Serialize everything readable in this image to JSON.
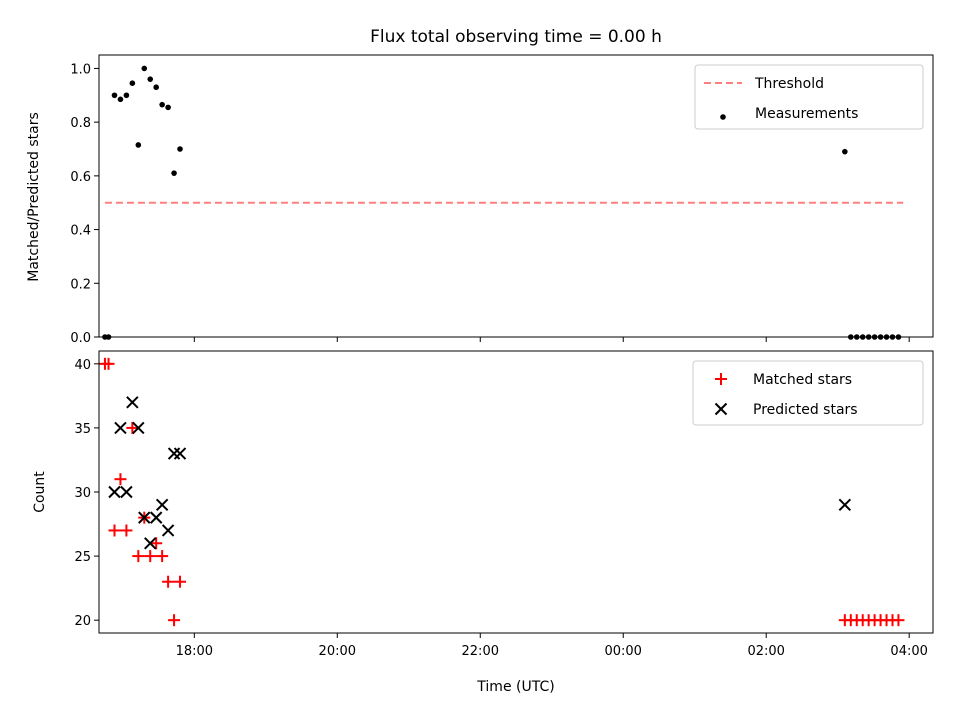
{
  "chart_data": [
    {
      "type": "scatter",
      "title": "Flux total observing time = 0.00 h",
      "xlabel": "",
      "ylabel": "Matched/Predicted stars",
      "xlim": [
        "16:40",
        "04:20"
      ],
      "ylim": [
        0,
        1.05
      ],
      "yticks": [
        "0.0",
        "0.2",
        "0.4",
        "0.6",
        "0.8",
        "1.0"
      ],
      "legend": {
        "placement": "top-right",
        "entries": [
          "Threshold",
          "Measurements"
        ]
      },
      "series": [
        {
          "name": "Threshold",
          "style": "dashed-line",
          "color": "#ff7f7f",
          "points": [
            [
              "16:45",
              0.5
            ],
            [
              "03:55",
              0.5
            ]
          ]
        },
        {
          "name": "Measurements",
          "style": "dot",
          "color": "#000000",
          "points": [
            [
              "16:45",
              0.0
            ],
            [
              "16:48",
              0.0
            ],
            [
              "16:53",
              0.9
            ],
            [
              "16:58",
              0.885
            ],
            [
              "17:03",
              0.9
            ],
            [
              "17:08",
              0.945
            ],
            [
              "17:13",
              0.715
            ],
            [
              "17:18",
              1.0
            ],
            [
              "17:23",
              0.96
            ],
            [
              "17:28",
              0.93
            ],
            [
              "17:33",
              0.865
            ],
            [
              "17:38",
              0.855
            ],
            [
              "17:43",
              0.61
            ],
            [
              "17:48",
              0.7
            ],
            [
              "03:06",
              0.69
            ],
            [
              "03:11",
              0.0
            ],
            [
              "03:16",
              0.0
            ],
            [
              "03:21",
              0.0
            ],
            [
              "03:26",
              0.0
            ],
            [
              "03:31",
              0.0
            ],
            [
              "03:36",
              0.0
            ],
            [
              "03:41",
              0.0
            ],
            [
              "03:46",
              0.0
            ],
            [
              "03:51",
              0.0
            ]
          ]
        }
      ]
    },
    {
      "type": "scatter",
      "title": "",
      "xlabel": "Time (UTC)",
      "ylabel": "Count",
      "xlim": [
        "16:40",
        "04:20"
      ],
      "ylim": [
        19,
        41
      ],
      "yticks": [
        "20",
        "25",
        "30",
        "35",
        "40"
      ],
      "xticks": [
        "18:00",
        "20:00",
        "22:00",
        "00:00",
        "02:00",
        "04:00"
      ],
      "legend": {
        "placement": "top-right",
        "entries": [
          "Matched stars",
          "Predicted stars"
        ]
      },
      "series": [
        {
          "name": "Matched stars",
          "marker": "plus",
          "color": "#ff0000",
          "points": [
            [
              "16:45",
              40
            ],
            [
              "16:48",
              40
            ],
            [
              "16:53",
              27
            ],
            [
              "16:58",
              31
            ],
            [
              "17:03",
              27
            ],
            [
              "17:08",
              35
            ],
            [
              "17:13",
              25
            ],
            [
              "17:18",
              28
            ],
            [
              "17:23",
              25
            ],
            [
              "17:28",
              26
            ],
            [
              "17:33",
              25
            ],
            [
              "17:38",
              23
            ],
            [
              "17:43",
              20
            ],
            [
              "17:48",
              23
            ],
            [
              "03:06",
              20
            ],
            [
              "03:11",
              20
            ],
            [
              "03:16",
              20
            ],
            [
              "03:21",
              20
            ],
            [
              "03:26",
              20
            ],
            [
              "03:31",
              20
            ],
            [
              "03:36",
              20
            ],
            [
              "03:41",
              20
            ],
            [
              "03:46",
              20
            ],
            [
              "03:51",
              20
            ]
          ]
        },
        {
          "name": "Predicted stars",
          "marker": "x",
          "color": "#000000",
          "points": [
            [
              "16:53",
              30
            ],
            [
              "16:58",
              35
            ],
            [
              "17:03",
              30
            ],
            [
              "17:08",
              37
            ],
            [
              "17:13",
              35
            ],
            [
              "17:18",
              28
            ],
            [
              "17:23",
              26
            ],
            [
              "17:28",
              28
            ],
            [
              "17:33",
              29
            ],
            [
              "17:38",
              27
            ],
            [
              "17:43",
              33
            ],
            [
              "17:48",
              33
            ],
            [
              "03:06",
              29
            ]
          ]
        }
      ]
    }
  ]
}
